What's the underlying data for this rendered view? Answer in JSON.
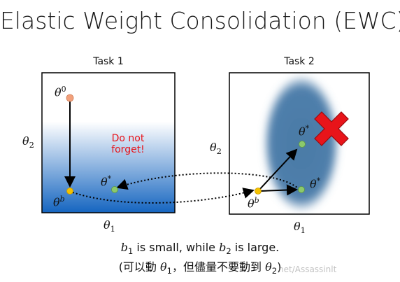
{
  "title": "Elastic Weight Consolidation (EWC)",
  "task1": {
    "label": "Task 1",
    "theta0_label": "θ",
    "theta0_sup": "0",
    "thetab_label": "θ",
    "thetab_sup": "b",
    "thetastar_label": "θ",
    "thetastar_sup": "*",
    "y_axis": "θ",
    "y_axis_sub": "2",
    "x_axis": "θ",
    "x_axis_sub": "1",
    "annotation_line1": "Do not",
    "annotation_line2": "forget!"
  },
  "task2": {
    "label": "Task 2",
    "thetab_label": "θ",
    "thetab_sup": "b",
    "thetastar_top_label": "θ",
    "thetastar_top_sup": "*",
    "thetastar_right_label": "θ",
    "thetastar_right_sup": "*",
    "y_axis": "θ",
    "y_axis_sub": "2",
    "x_axis": "θ",
    "x_axis_sub": "1"
  },
  "caption": {
    "line1_b1": "b",
    "line1_b1_sub": "1",
    "line1_mid": " is small, while ",
    "line1_b2": "b",
    "line1_b2_sub": "2",
    "line1_end": " is large.",
    "line2_start": "(可以動 ",
    "line2_theta1": "θ",
    "line2_theta1_sub": "1",
    "line2_mid": "，但儘量不要動到 ",
    "line2_theta2": "θ",
    "line2_theta2_sub": "2",
    "line2_end": ")"
  },
  "watermark": "net/Assassinlt",
  "colors": {
    "orange_point": "#f2a07b",
    "yellow_point": "#f5c200",
    "green_point": "#8cc96b",
    "ellipse": "#4a7aa6",
    "cross": "#e8141a",
    "gradient_top": "#ffffff",
    "gradient_bottom": "#1565c0"
  }
}
